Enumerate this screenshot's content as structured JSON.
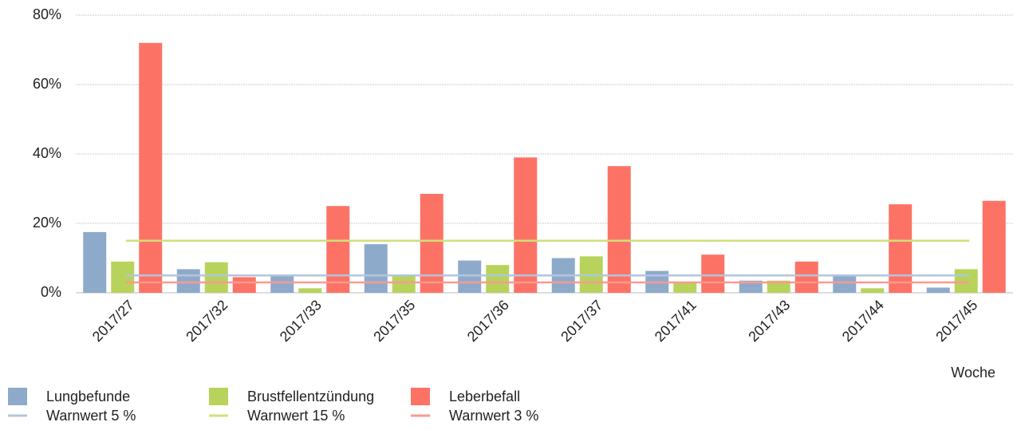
{
  "chart_data": {
    "type": "bar",
    "x_label": "Woche",
    "categories": [
      "2017/27",
      "2017/32",
      "2017/33",
      "2017/35",
      "2017/36",
      "2017/37",
      "2017/41",
      "2017/43",
      "2017/44",
      "2017/45"
    ],
    "series": [
      {
        "name": "Lungbefunde",
        "color": "#8eaacb",
        "values": [
          17.5,
          6.8,
          5,
          14,
          9.3,
          10,
          6.3,
          3.5,
          5,
          1.5
        ]
      },
      {
        "name": "Brustfellentzündung",
        "color": "#b7d35b",
        "values": [
          9,
          8.8,
          1.3,
          5,
          8,
          10.5,
          3.2,
          3.5,
          1.3,
          6.8
        ]
      },
      {
        "name": "Leberbefall",
        "color": "#fc7366",
        "values": [
          72,
          4.5,
          25,
          28.5,
          39,
          36.5,
          11,
          9,
          25.5,
          26.5
        ]
      }
    ],
    "reference_lines": [
      {
        "name": "Warnwert 5 %",
        "color": "#b3c5dc",
        "value": 5
      },
      {
        "name": "Warnwert 15 %",
        "color": "#cfe07b",
        "value": 15
      },
      {
        "name": "Warnwert 3 %",
        "color": "#f99a90",
        "value": 3
      }
    ],
    "ylim": [
      0,
      80
    ],
    "yticks": [
      {
        "value": 0,
        "label": "0%"
      },
      {
        "value": 20,
        "label": "20%"
      },
      {
        "value": 40,
        "label": "40%"
      },
      {
        "value": 60,
        "label": "60%"
      },
      {
        "value": 80,
        "label": "80%"
      }
    ],
    "grid": true
  }
}
